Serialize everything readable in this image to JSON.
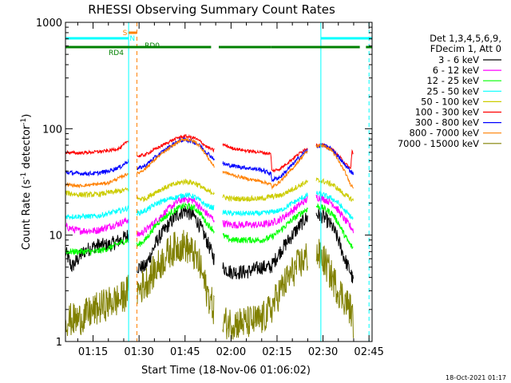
{
  "chart_data": {
    "type": "line",
    "title": "RHESSI Observing Summary Count Rates",
    "xlabel": "Start Time (18-Nov-06 01:06:02)",
    "ylabel_main": "Count Rate (s",
    "ylabel_mid": " detector",
    "ylabel_end": ")",
    "ylabel_sup": "-1",
    "yscale": "log",
    "xlim": [
      66,
      166
    ],
    "ylim": [
      1,
      1000
    ],
    "x_unit": "minutes after 00:00 UT, 18-Nov-06",
    "x_ticks": [
      {
        "x": 75,
        "label": "01:15"
      },
      {
        "x": 90,
        "label": "01:30"
      },
      {
        "x": 105,
        "label": "01:45"
      },
      {
        "x": 120,
        "label": "02:00"
      },
      {
        "x": 135,
        "label": "02:15"
      },
      {
        "x": 150,
        "label": "02:30"
      },
      {
        "x": 165,
        "label": "02:45"
      }
    ],
    "y_ticks": [
      {
        "y": 1,
        "label": "1"
      },
      {
        "y": 10,
        "label": "10"
      },
      {
        "y": 100,
        "label": "100"
      },
      {
        "y": 1000,
        "label": "1000"
      }
    ],
    "legend_header": [
      "Det 1,3,4,5,6,9,",
      "FDecim 1, Att 0"
    ],
    "legend_placement": "right",
    "footer_timestamp": "18-Oct-2021 01:17",
    "day_intervals": [
      [
        66,
        86.6
      ],
      [
        89.3,
        114.6
      ],
      [
        117.3,
        145
      ],
      [
        147.8,
        166
      ]
    ],
    "series": [
      {
        "name": "3 - 6 keV",
        "color": "#000000",
        "noise": 0.07,
        "points": [
          [
            66,
            7
          ],
          [
            68,
            5
          ],
          [
            72,
            7
          ],
          [
            76,
            8
          ],
          [
            80,
            8
          ],
          [
            84,
            9
          ],
          [
            86.5,
            10
          ],
          [
            89.5,
            5
          ],
          [
            92,
            5
          ],
          [
            96,
            9
          ],
          [
            100,
            13
          ],
          [
            103,
            16
          ],
          [
            105,
            17
          ],
          [
            108,
            15
          ],
          [
            110,
            12
          ],
          [
            112,
            9
          ],
          [
            114.5,
            6
          ],
          [
            117,
            5
          ],
          [
            120,
            4.5
          ],
          [
            125,
            4.5
          ],
          [
            130,
            5
          ],
          [
            133,
            5
          ],
          [
            136,
            7
          ],
          [
            140,
            10
          ],
          [
            144,
            14
          ],
          [
            147,
            16
          ],
          [
            150,
            15
          ],
          [
            153,
            12
          ],
          [
            155,
            9
          ],
          [
            157,
            6
          ],
          [
            159,
            4.5
          ],
          [
            160,
            3.5
          ]
        ]
      },
      {
        "name": "6 - 12 keV",
        "color": "#ff00ff",
        "noise": 0.035,
        "points": [
          [
            66,
            12
          ],
          [
            70,
            11
          ],
          [
            76,
            11
          ],
          [
            80,
            12
          ],
          [
            84,
            13
          ],
          [
            86.5,
            14
          ],
          [
            89.5,
            10
          ],
          [
            92,
            11
          ],
          [
            96,
            14
          ],
          [
            100,
            18
          ],
          [
            103,
            21
          ],
          [
            105,
            22
          ],
          [
            108,
            21
          ],
          [
            110,
            18
          ],
          [
            112,
            16
          ],
          [
            114.5,
            14
          ],
          [
            117,
            13
          ],
          [
            120,
            12.5
          ],
          [
            125,
            12.5
          ],
          [
            130,
            12.5
          ],
          [
            133,
            13
          ],
          [
            136,
            14
          ],
          [
            140,
            17
          ],
          [
            144,
            21
          ],
          [
            147,
            23
          ],
          [
            150,
            22
          ],
          [
            153,
            20
          ],
          [
            155,
            17
          ],
          [
            157,
            14
          ],
          [
            159,
            12
          ],
          [
            160,
            11
          ]
        ]
      },
      {
        "name": "12 - 25 keV",
        "color": "#00ff00",
        "noise": 0.03,
        "points": [
          [
            66,
            7
          ],
          [
            70,
            7
          ],
          [
            76,
            7
          ],
          [
            80,
            7.5
          ],
          [
            84,
            8.5
          ],
          [
            86.5,
            9
          ],
          [
            89.5,
            8
          ],
          [
            92,
            9
          ],
          [
            96,
            13
          ],
          [
            100,
            16
          ],
          [
            103,
            18
          ],
          [
            105,
            19
          ],
          [
            108,
            18
          ],
          [
            110,
            16
          ],
          [
            112,
            13
          ],
          [
            114.5,
            11
          ],
          [
            117,
            10
          ],
          [
            120,
            9
          ],
          [
            125,
            9
          ],
          [
            130,
            9
          ],
          [
            133,
            9.5
          ],
          [
            136,
            11
          ],
          [
            140,
            14
          ],
          [
            144,
            17
          ],
          [
            147,
            19
          ],
          [
            150,
            18
          ],
          [
            153,
            16
          ],
          [
            155,
            13
          ],
          [
            157,
            10
          ],
          [
            159,
            8
          ],
          [
            160,
            7.5
          ]
        ]
      },
      {
        "name": "25 - 50 keV",
        "color": "#00ffff",
        "noise": 0.025,
        "points": [
          [
            66,
            15
          ],
          [
            70,
            15
          ],
          [
            76,
            15
          ],
          [
            80,
            16
          ],
          [
            84,
            17
          ],
          [
            86.5,
            18
          ],
          [
            89.5,
            16
          ],
          [
            92,
            17
          ],
          [
            96,
            20
          ],
          [
            100,
            22
          ],
          [
            103,
            23
          ],
          [
            105,
            24
          ],
          [
            108,
            23
          ],
          [
            110,
            21
          ],
          [
            112,
            19
          ],
          [
            114.5,
            18
          ],
          [
            117,
            16.5
          ],
          [
            120,
            16
          ],
          [
            125,
            16
          ],
          [
            130,
            16
          ],
          [
            133,
            16.5
          ],
          [
            136,
            17
          ],
          [
            140,
            20
          ],
          [
            144,
            23
          ],
          [
            147,
            25
          ],
          [
            150,
            24
          ],
          [
            153,
            22
          ],
          [
            155,
            20
          ],
          [
            157,
            17
          ],
          [
            159,
            15
          ],
          [
            160,
            14
          ]
        ]
      },
      {
        "name": "50 - 100 keV",
        "color": "#cccc00",
        "noise": 0.025,
        "points": [
          [
            66,
            25
          ],
          [
            70,
            24
          ],
          [
            76,
            24
          ],
          [
            80,
            25
          ],
          [
            84,
            26
          ],
          [
            86.5,
            27
          ],
          [
            89.5,
            22
          ],
          [
            92,
            22
          ],
          [
            96,
            26
          ],
          [
            100,
            29
          ],
          [
            103,
            31
          ],
          [
            105,
            32
          ],
          [
            108,
            31
          ],
          [
            110,
            29
          ],
          [
            112,
            26
          ],
          [
            114.5,
            25
          ],
          [
            117,
            23
          ],
          [
            120,
            22
          ],
          [
            125,
            22
          ],
          [
            130,
            22
          ],
          [
            133,
            23
          ],
          [
            136,
            23.5
          ],
          [
            140,
            27
          ],
          [
            144,
            31
          ],
          [
            147,
            33
          ],
          [
            150,
            32
          ],
          [
            153,
            30
          ],
          [
            155,
            27
          ],
          [
            157,
            24
          ],
          [
            159,
            22
          ],
          [
            160,
            21
          ]
        ]
      },
      {
        "name": "100 - 300 keV",
        "color": "#ff0000",
        "noise": 0.015,
        "points": [
          [
            66,
            60
          ],
          [
            70,
            59
          ],
          [
            74,
            60
          ],
          [
            80,
            62
          ],
          [
            84,
            66
          ],
          [
            86.5,
            78
          ],
          [
            89.5,
            55
          ],
          [
            92,
            57
          ],
          [
            96,
            66
          ],
          [
            100,
            76
          ],
          [
            103,
            83
          ],
          [
            105,
            85
          ],
          [
            108,
            82
          ],
          [
            110,
            76
          ],
          [
            112,
            68
          ],
          [
            114.5,
            62
          ],
          [
            114.8,
            90
          ],
          [
            117,
            72
          ],
          [
            120,
            66
          ],
          [
            125,
            62
          ],
          [
            130,
            60
          ],
          [
            133,
            58
          ],
          [
            133.3,
            40
          ],
          [
            136,
            42
          ],
          [
            140,
            52
          ],
          [
            144,
            64
          ],
          [
            147,
            70
          ],
          [
            150,
            70
          ],
          [
            153,
            64
          ],
          [
            155,
            56
          ],
          [
            157,
            48
          ],
          [
            159,
            42
          ],
          [
            159.5,
            62
          ],
          [
            160,
            56
          ]
        ]
      },
      {
        "name": "300 - 800 keV",
        "color": "#0000ff",
        "noise": 0.02,
        "points": [
          [
            66,
            39
          ],
          [
            70,
            38
          ],
          [
            76,
            38
          ],
          [
            80,
            40
          ],
          [
            84,
            44
          ],
          [
            86.5,
            50
          ],
          [
            89.5,
            42
          ],
          [
            92,
            45
          ],
          [
            96,
            56
          ],
          [
            100,
            68
          ],
          [
            103,
            77
          ],
          [
            105,
            79
          ],
          [
            108,
            75
          ],
          [
            110,
            69
          ],
          [
            112,
            60
          ],
          [
            114.5,
            52
          ],
          [
            117,
            47
          ],
          [
            120,
            45
          ],
          [
            125,
            43
          ],
          [
            130,
            41
          ],
          [
            133,
            38
          ],
          [
            133.3,
            33
          ],
          [
            136,
            35
          ],
          [
            140,
            46
          ],
          [
            144,
            60
          ],
          [
            147,
            68
          ],
          [
            150,
            70
          ],
          [
            153,
            64
          ],
          [
            155,
            54
          ],
          [
            157,
            46
          ],
          [
            159,
            40
          ],
          [
            160,
            38
          ]
        ]
      },
      {
        "name": "800 - 7000 keV",
        "color": "#ff8000",
        "noise": 0.015,
        "points": [
          [
            66,
            30
          ],
          [
            70,
            29
          ],
          [
            76,
            30
          ],
          [
            80,
            31
          ],
          [
            84,
            35
          ],
          [
            86.5,
            38
          ],
          [
            89.5,
            38
          ],
          [
            92,
            42
          ],
          [
            96,
            54
          ],
          [
            100,
            66
          ],
          [
            103,
            76
          ],
          [
            105,
            80
          ],
          [
            108,
            76
          ],
          [
            110,
            68
          ],
          [
            112,
            56
          ],
          [
            114.5,
            44
          ],
          [
            117,
            40
          ],
          [
            120,
            37
          ],
          [
            125,
            34
          ],
          [
            130,
            32
          ],
          [
            133,
            30
          ],
          [
            133.3,
            28
          ],
          [
            136,
            32
          ],
          [
            140,
            42
          ],
          [
            144,
            58
          ],
          [
            147,
            68
          ],
          [
            150,
            70
          ],
          [
            153,
            62
          ],
          [
            155,
            50
          ],
          [
            157,
            40
          ],
          [
            159,
            30
          ],
          [
            160,
            28
          ]
        ]
      },
      {
        "name": "7000 - 15000 keV",
        "color": "#808000",
        "noise": 0.16,
        "points": [
          [
            66,
            1.6
          ],
          [
            70,
            1.6
          ],
          [
            76,
            2
          ],
          [
            80,
            2.3
          ],
          [
            84,
            2.5
          ],
          [
            86.5,
            3
          ],
          [
            89.5,
            3
          ],
          [
            92,
            3.5
          ],
          [
            96,
            5
          ],
          [
            100,
            7
          ],
          [
            103,
            8
          ],
          [
            105,
            8
          ],
          [
            108,
            6.5
          ],
          [
            110,
            5
          ],
          [
            112,
            3
          ],
          [
            114.5,
            2
          ],
          [
            117,
            1.5
          ],
          [
            120,
            1.5
          ],
          [
            125,
            1.5
          ],
          [
            130,
            1.6
          ],
          [
            133,
            2
          ],
          [
            136,
            3
          ],
          [
            140,
            4.5
          ],
          [
            144,
            6
          ],
          [
            147,
            7
          ],
          [
            150,
            6
          ],
          [
            153,
            4
          ],
          [
            155,
            3
          ],
          [
            157,
            2.5
          ],
          [
            159,
            2
          ],
          [
            160,
            1.5
          ]
        ]
      }
    ]
  },
  "annotations": {
    "saa_label": "S",
    "night_label": "N",
    "rd0_label": "RD0",
    "rd4_label": "RD4",
    "cyan_bars": [
      [
        66,
        86.6
      ],
      [
        149.3,
        166
      ]
    ],
    "orange_bar": [
      86.6,
      89.3
    ],
    "green_bars": [
      [
        66,
        86.6
      ],
      [
        86.6,
        113.5
      ],
      [
        116,
        133
      ],
      [
        133,
        162
      ],
      [
        164,
        166
      ]
    ],
    "cyan_vlines": [
      86.6,
      149.3
    ],
    "cyan_dashed_vlines": [
      165
    ],
    "orange_dashed_vlines": [
      89.3
    ]
  }
}
